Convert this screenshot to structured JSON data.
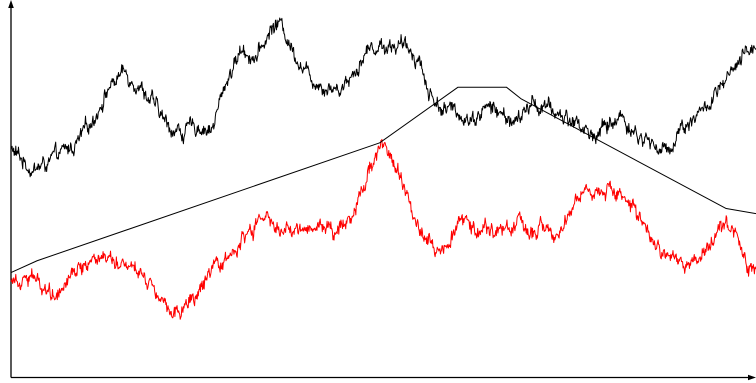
{
  "chart_data": {
    "type": "line",
    "title": "",
    "xlabel": "",
    "ylabel": "",
    "xlim": [
      0,
      100
    ],
    "ylim": [
      0,
      100
    ],
    "grid": false,
    "axes": {
      "x_arrow": true,
      "y_arrow": true,
      "ticks": false
    },
    "series": [
      {
        "color": "#000000",
        "style": "noisy",
        "points": [
          [
            0,
            58
          ],
          [
            1.5,
            55
          ],
          [
            3,
            52
          ],
          [
            5,
            54
          ],
          [
            7,
            57
          ],
          [
            9,
            60
          ],
          [
            11,
            67
          ],
          [
            13,
            76
          ],
          [
            15,
            81
          ],
          [
            17,
            78
          ],
          [
            19,
            72
          ],
          [
            21,
            65
          ],
          [
            23,
            63
          ],
          [
            25,
            65
          ],
          [
            27,
            64
          ],
          [
            29,
            79
          ],
          [
            31,
            88
          ],
          [
            33,
            85
          ],
          [
            35,
            94
          ],
          [
            36,
            96
          ],
          [
            38,
            87
          ],
          [
            40,
            80
          ],
          [
            42,
            77
          ],
          [
            44,
            76
          ],
          [
            46,
            81
          ],
          [
            48,
            88
          ],
          [
            50,
            89
          ],
          [
            52,
            89
          ],
          [
            54,
            87
          ],
          [
            55,
            84
          ],
          [
            56,
            75
          ],
          [
            58,
            70
          ],
          [
            60,
            69
          ],
          [
            62,
            67
          ],
          [
            64,
            71
          ],
          [
            66,
            68
          ],
          [
            68,
            66
          ],
          [
            70,
            72
          ],
          [
            72,
            70
          ],
          [
            74,
            68
          ],
          [
            76,
            66
          ],
          [
            78,
            62
          ],
          [
            80,
            65
          ],
          [
            82,
            68
          ],
          [
            84,
            62
          ],
          [
            86,
            60
          ],
          [
            88,
            57
          ],
          [
            90,
            65
          ],
          [
            92,
            68
          ],
          [
            94,
            72
          ],
          [
            96,
            78
          ],
          [
            98,
            84
          ],
          [
            99,
            87
          ],
          [
            100,
            90
          ]
        ]
      },
      {
        "color": "#ff0000",
        "style": "noisy",
        "points": [
          [
            0,
            20
          ],
          [
            2,
            21
          ],
          [
            4,
            18
          ],
          [
            6,
            15
          ],
          [
            8,
            22
          ],
          [
            10,
            24
          ],
          [
            12,
            27
          ],
          [
            14,
            26
          ],
          [
            16,
            24
          ],
          [
            18,
            21
          ],
          [
            20,
            15
          ],
          [
            22,
            10
          ],
          [
            24,
            12
          ],
          [
            26,
            18
          ],
          [
            28,
            23
          ],
          [
            30,
            28
          ],
          [
            32,
            33
          ],
          [
            34,
            38
          ],
          [
            36,
            34
          ],
          [
            38,
            33
          ],
          [
            40,
            36
          ],
          [
            42,
            35
          ],
          [
            44,
            34
          ],
          [
            46,
            40
          ],
          [
            48,
            52
          ],
          [
            49.5,
            60
          ],
          [
            51,
            56
          ],
          [
            53,
            45
          ],
          [
            55,
            35
          ],
          [
            57,
            28
          ],
          [
            59,
            33
          ],
          [
            61,
            37
          ],
          [
            63,
            35
          ],
          [
            65,
            33
          ],
          [
            67,
            36
          ],
          [
            69,
            34
          ],
          [
            71,
            35
          ],
          [
            73,
            31
          ],
          [
            75,
            41
          ],
          [
            77,
            46
          ],
          [
            79,
            45
          ],
          [
            81,
            47
          ],
          [
            83,
            42
          ],
          [
            85,
            34
          ],
          [
            87,
            28
          ],
          [
            89,
            25
          ],
          [
            91,
            23
          ],
          [
            93,
            26
          ],
          [
            95,
            36
          ],
          [
            97,
            34
          ],
          [
            99,
            22
          ],
          [
            100,
            20
          ]
        ]
      },
      {
        "color": "#000000",
        "style": "envelope",
        "points": [
          [
            0,
            21.5
          ],
          [
            3.5,
            25
          ],
          [
            49.5,
            60
          ],
          [
            60,
            76.5
          ],
          [
            66.5,
            76.5
          ],
          [
            68.5,
            73
          ],
          [
            96,
            40.5
          ],
          [
            100,
            39
          ]
        ]
      }
    ]
  }
}
